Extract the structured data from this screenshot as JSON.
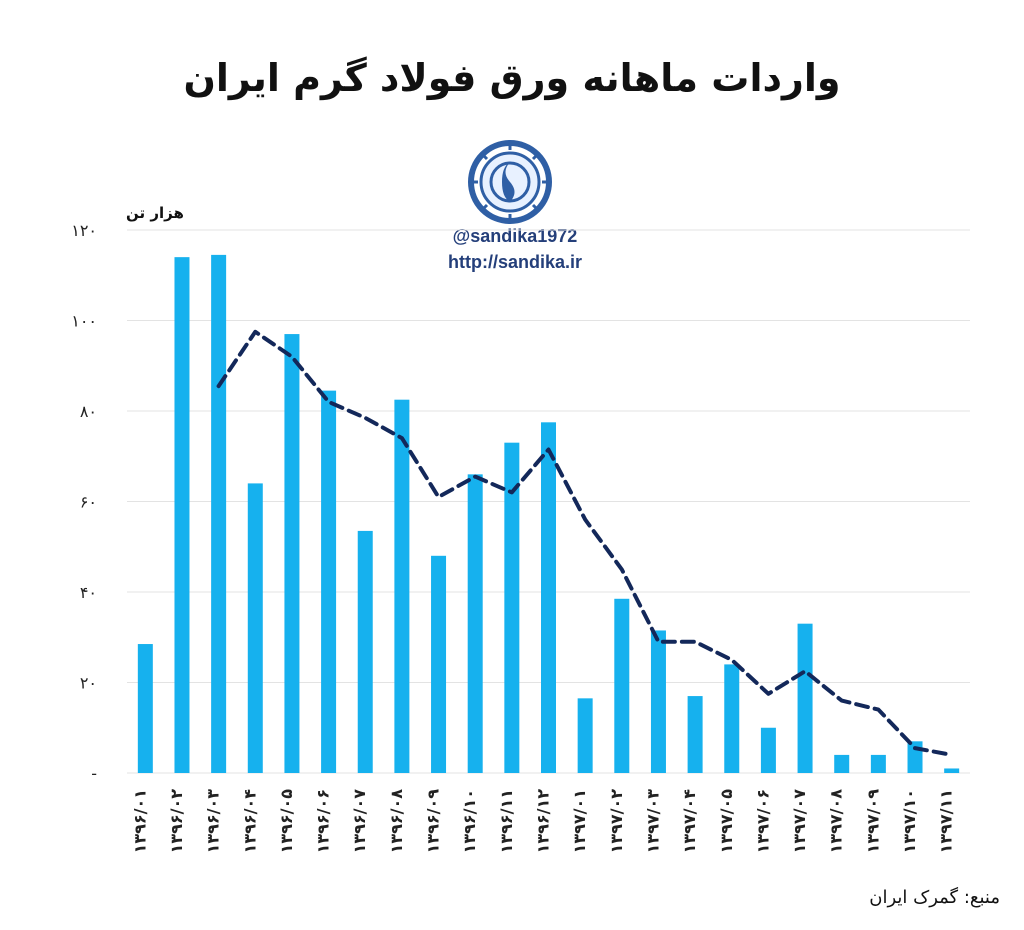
{
  "title": "واردات ماهانه ورق فولاد گرم ایران",
  "brand": {
    "handle": "@sandika1972",
    "site": "http://sandika.ir"
  },
  "unit_label": "هزار تن",
  "source": "منبع: گمرک ایران",
  "colors": {
    "bar": "#16b1ee",
    "line": "#13285a",
    "grid": "#e3e3e3",
    "logo_ring": "#2f5fa5",
    "logo_inner": "#e8f1ff"
  },
  "chart_data": {
    "type": "bar",
    "categories": [
      "۱۳۹۶/۰۱",
      "۱۳۹۶/۰۲",
      "۱۳۹۶/۰۳",
      "۱۳۹۶/۰۴",
      "۱۳۹۶/۰۵",
      "۱۳۹۶/۰۶",
      "۱۳۹۶/۰۷",
      "۱۳۹۶/۰۸",
      "۱۳۹۶/۰۹",
      "۱۳۹۶/۱۰",
      "۱۳۹۶/۱۱",
      "۱۳۹۶/۱۲",
      "۱۳۹۷/۰۱",
      "۱۳۹۷/۰۲",
      "۱۳۹۷/۰۳",
      "۱۳۹۷/۰۴",
      "۱۳۹۷/۰۵",
      "۱۳۹۷/۰۶",
      "۱۳۹۷/۰۷",
      "۱۳۹۷/۰۸",
      "۱۳۹۷/۰۹",
      "۱۳۹۷/۱۰",
      "۱۳۹۷/۱۱"
    ],
    "series": [
      {
        "type": "bar",
        "values": [
          28.5,
          114,
          114.5,
          64,
          97,
          84.5,
          53.5,
          82.5,
          48,
          66,
          73,
          77.5,
          16.5,
          38.5,
          31.5,
          17,
          24,
          10,
          33,
          4,
          4,
          7,
          1
        ]
      },
      {
        "type": "line",
        "style": "dashed",
        "values": [
          null,
          null,
          85.5,
          97.5,
          92,
          82,
          78.5,
          74,
          61,
          65.5,
          62,
          71.5,
          56,
          45,
          29,
          29,
          25,
          17.5,
          22.5,
          16,
          14,
          5.5,
          4
        ]
      }
    ],
    "y_ticks": [
      "-",
      "۲۰",
      "۴۰",
      "۶۰",
      "۸۰",
      "۱۰۰",
      "۱۲۰"
    ],
    "ylim": [
      0,
      120
    ],
    "grid": true,
    "legend": "none",
    "xlabel": "",
    "ylabel": "هزار تن"
  }
}
